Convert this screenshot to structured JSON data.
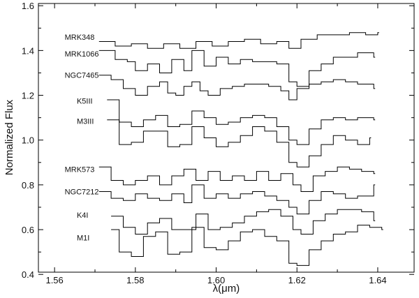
{
  "chart_data": {
    "type": "line",
    "title": "",
    "xlabel": "λ(μm)",
    "ylabel": "Normalized Flux",
    "xlim": [
      1.556,
      1.649
    ],
    "ylim": [
      0.41,
      1.61
    ],
    "xticks": [
      1.56,
      1.58,
      1.6,
      1.62,
      1.64
    ],
    "xtick_labels": [
      "1.56",
      "1.58",
      "1.60",
      "1.62",
      "1.64"
    ],
    "yticks": [
      0.4,
      0.6,
      0.8,
      1.0,
      1.2,
      1.4,
      1.6
    ],
    "ytick_labels": [
      "0.4",
      "0.6",
      "0.8",
      "1.0",
      "1.2",
      "1.4",
      "1.6"
    ],
    "grid": false,
    "legend": "none",
    "line_color": "#000000",
    "drawstyle": "steps",
    "series": [
      {
        "name": "MRK348",
        "label_pos": [
          1.5625,
          1.46
        ],
        "x": [
          1.571,
          1.575,
          1.579,
          1.583,
          1.587,
          1.591,
          1.595,
          1.599,
          1.603,
          1.607,
          1.611,
          1.615,
          1.618,
          1.621,
          1.625,
          1.629,
          1.633,
          1.637,
          1.64
        ],
        "y": [
          1.44,
          1.42,
          1.43,
          1.41,
          1.43,
          1.41,
          1.44,
          1.42,
          1.44,
          1.45,
          1.43,
          1.44,
          1.41,
          1.45,
          1.47,
          1.47,
          1.48,
          1.47,
          1.48
        ]
      },
      {
        "name": "MRK1066",
        "label_pos": [
          1.5625,
          1.385
        ],
        "x": [
          1.571,
          1.575,
          1.578,
          1.58,
          1.583,
          1.586,
          1.589,
          1.592,
          1.594,
          1.597,
          1.6,
          1.603,
          1.606,
          1.609,
          1.612,
          1.615,
          1.618,
          1.62,
          1.623,
          1.626,
          1.629,
          1.632,
          1.635,
          1.639
        ],
        "y": [
          1.4,
          1.36,
          1.35,
          1.31,
          1.34,
          1.3,
          1.36,
          1.31,
          1.4,
          1.33,
          1.37,
          1.34,
          1.36,
          1.35,
          1.35,
          1.34,
          1.26,
          1.24,
          1.31,
          1.34,
          1.37,
          1.37,
          1.39,
          1.37
        ]
      },
      {
        "name": "NGC7465",
        "label_pos": [
          1.5625,
          1.29
        ],
        "x": [
          1.571,
          1.574,
          1.577,
          1.58,
          1.583,
          1.586,
          1.588,
          1.59,
          1.592,
          1.594,
          1.596,
          1.598,
          1.601,
          1.604,
          1.607,
          1.61,
          1.613,
          1.616,
          1.618,
          1.62,
          1.623,
          1.626,
          1.629,
          1.632,
          1.635,
          1.639
        ],
        "y": [
          1.29,
          1.27,
          1.23,
          1.2,
          1.24,
          1.26,
          1.21,
          1.2,
          1.24,
          1.26,
          1.22,
          1.2,
          1.23,
          1.24,
          1.25,
          1.25,
          1.24,
          1.22,
          1.18,
          1.23,
          1.25,
          1.26,
          1.27,
          1.26,
          1.25,
          1.23
        ]
      },
      {
        "name": "K5III",
        "label_pos": [
          1.5655,
          1.175
        ],
        "x": [
          1.573,
          1.576,
          1.579,
          1.582,
          1.585,
          1.588,
          1.591,
          1.594,
          1.597,
          1.6,
          1.603,
          1.606,
          1.609,
          1.612,
          1.615,
          1.618,
          1.62,
          1.623,
          1.626,
          1.629,
          1.632,
          1.635,
          1.639
        ],
        "y": [
          1.18,
          1.08,
          1.06,
          1.09,
          1.11,
          1.06,
          1.07,
          1.13,
          1.1,
          1.07,
          1.08,
          1.1,
          1.11,
          1.1,
          1.06,
          1.0,
          0.98,
          1.05,
          1.09,
          1.1,
          1.09,
          1.1,
          1.09
        ]
      },
      {
        "name": "M3III",
        "label_pos": [
          1.5655,
          1.085
        ],
        "x": [
          1.573,
          1.576,
          1.579,
          1.582,
          1.585,
          1.588,
          1.591,
          1.594,
          1.597,
          1.6,
          1.603,
          1.606,
          1.609,
          1.612,
          1.615,
          1.618,
          1.62,
          1.623,
          1.626,
          1.629,
          1.632,
          1.635,
          1.638
        ],
        "y": [
          1.09,
          0.98,
          0.99,
          1.04,
          1.04,
          0.97,
          0.98,
          1.06,
          1.01,
          0.97,
          0.99,
          1.02,
          1.06,
          1.04,
          0.99,
          0.9,
          0.88,
          0.93,
          0.98,
          1.02,
          1.0,
          0.98,
          1.01
        ]
      },
      {
        "name": "MRK573",
        "label_pos": [
          1.5625,
          0.87
        ],
        "x": [
          1.571,
          1.574,
          1.577,
          1.58,
          1.583,
          1.586,
          1.589,
          1.592,
          1.595,
          1.598,
          1.601,
          1.604,
          1.607,
          1.61,
          1.613,
          1.616,
          1.619,
          1.621,
          1.624,
          1.627,
          1.63,
          1.633,
          1.636,
          1.639
        ],
        "y": [
          0.88,
          0.82,
          0.8,
          0.82,
          0.84,
          0.8,
          0.84,
          0.87,
          0.82,
          0.86,
          0.82,
          0.84,
          0.82,
          0.86,
          0.82,
          0.85,
          0.8,
          0.77,
          0.84,
          0.86,
          0.88,
          0.87,
          0.86,
          0.85
        ]
      },
      {
        "name": "NGC7212",
        "label_pos": [
          1.5625,
          0.77
        ],
        "x": [
          1.571,
          1.574,
          1.577,
          1.58,
          1.583,
          1.586,
          1.589,
          1.592,
          1.594,
          1.597,
          1.6,
          1.603,
          1.606,
          1.609,
          1.612,
          1.615,
          1.618,
          1.62,
          1.623,
          1.626,
          1.629,
          1.632,
          1.635,
          1.639
        ],
        "y": [
          0.77,
          0.74,
          0.73,
          0.76,
          0.74,
          0.73,
          0.76,
          0.72,
          0.8,
          0.74,
          0.76,
          0.74,
          0.76,
          0.77,
          0.75,
          0.73,
          0.7,
          0.67,
          0.73,
          0.77,
          0.76,
          0.74,
          0.75,
          0.8
        ]
      },
      {
        "name": "K4I",
        "label_pos": [
          1.5655,
          0.665
        ],
        "x": [
          1.574,
          1.577,
          1.58,
          1.583,
          1.586,
          1.589,
          1.592,
          1.595,
          1.598,
          1.601,
          1.604,
          1.607,
          1.61,
          1.613,
          1.616,
          1.619,
          1.621,
          1.624,
          1.627,
          1.63,
          1.633,
          1.636,
          1.639
        ],
        "y": [
          0.66,
          0.61,
          0.58,
          0.63,
          0.65,
          0.6,
          0.6,
          0.67,
          0.6,
          0.61,
          0.63,
          0.66,
          0.68,
          0.69,
          0.66,
          0.6,
          0.58,
          0.64,
          0.67,
          0.69,
          0.69,
          0.68,
          0.64
        ]
      },
      {
        "name": "M1I",
        "label_pos": [
          1.5655,
          0.565
        ],
        "x": [
          1.574,
          1.576,
          1.579,
          1.582,
          1.585,
          1.588,
          1.591,
          1.594,
          1.597,
          1.6,
          1.603,
          1.606,
          1.609,
          1.612,
          1.615,
          1.618,
          1.62,
          1.623,
          1.626,
          1.629,
          1.632,
          1.635,
          1.638,
          1.641
        ],
        "y": [
          0.6,
          0.5,
          0.48,
          0.57,
          0.59,
          0.49,
          0.5,
          0.61,
          0.52,
          0.51,
          0.55,
          0.59,
          0.6,
          0.57,
          0.55,
          0.45,
          0.44,
          0.51,
          0.55,
          0.58,
          0.59,
          0.62,
          0.61,
          0.6
        ]
      }
    ]
  }
}
